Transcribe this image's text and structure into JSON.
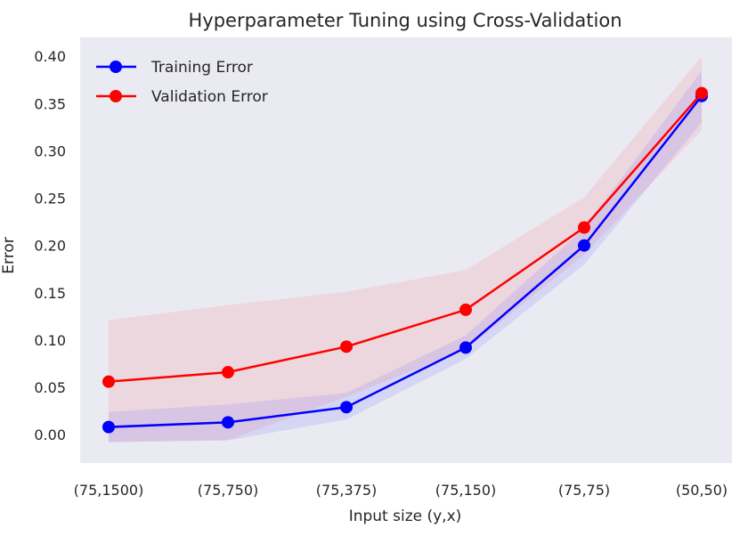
{
  "chart_data": {
    "type": "line",
    "title": "Hyperparameter Tuning using Cross-Validation",
    "xlabel": "Input size (y,x)",
    "ylabel": "Error",
    "categories": [
      "(75,1500)",
      "(75,750)",
      "(75,375)",
      "(75,150)",
      "(75,75)",
      "(50,50)"
    ],
    "ylim": [
      -0.03,
      0.42
    ],
    "yticks": [
      "0.00",
      "0.05",
      "0.10",
      "0.15",
      "0.20",
      "0.25",
      "0.30",
      "0.35",
      "0.40"
    ],
    "grid": false,
    "legend": "top-left",
    "background": "#eaeaf2",
    "series": [
      {
        "name": "Training Error",
        "color": "#0000ff",
        "values": [
          0.008,
          0.013,
          0.029,
          0.092,
          0.2,
          0.358
        ],
        "band_low": [
          -0.008,
          -0.006,
          0.016,
          0.08,
          0.18,
          0.33
        ],
        "band_high": [
          0.024,
          0.032,
          0.044,
          0.105,
          0.218,
          0.385
        ]
      },
      {
        "name": "Validation Error",
        "color": "#ff0000",
        "values": [
          0.056,
          0.066,
          0.093,
          0.132,
          0.219,
          0.361
        ],
        "band_low": [
          -0.008,
          -0.006,
          0.04,
          0.09,
          0.19,
          0.322
        ],
        "band_high": [
          0.121,
          0.137,
          0.151,
          0.174,
          0.251,
          0.4
        ]
      }
    ]
  }
}
